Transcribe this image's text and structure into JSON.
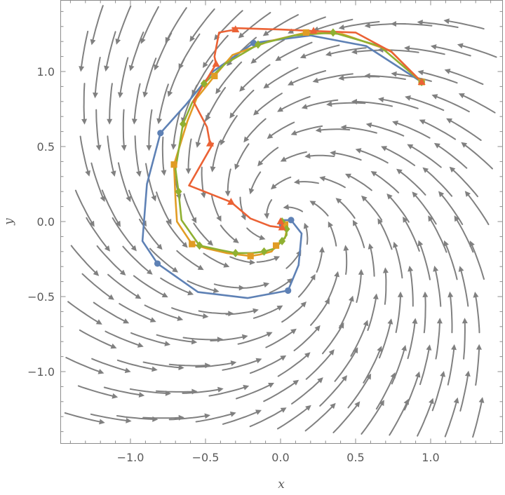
{
  "chart_data": {
    "type": "line",
    "title": "",
    "xlabel": "x",
    "ylabel": "y",
    "xlim": [
      -1.47,
      1.47
    ],
    "ylim": [
      -1.47,
      1.47
    ],
    "x_ticks": [
      {
        "value": -1.0,
        "label": "−1.0"
      },
      {
        "value": -0.5,
        "label": "−0.5"
      },
      {
        "value": 0.0,
        "label": "0.0"
      },
      {
        "value": 0.5,
        "label": "0.5"
      },
      {
        "value": 1.0,
        "label": "1.0"
      }
    ],
    "y_ticks": [
      {
        "value": 1.0,
        "label": "1.0"
      },
      {
        "value": 0.5,
        "label": "0.5"
      },
      {
        "value": 0.0,
        "label": "0.0"
      },
      {
        "value": -0.5,
        "label": "−0.5"
      },
      {
        "value": -1.0,
        "label": "−1.0"
      }
    ],
    "stream_field": {
      "type": "vector-field",
      "color": "#808080",
      "dx": "-0.6*x - y",
      "dy": "x - 0.6*y",
      "range": [
        -1.33,
        1.33
      ]
    },
    "series": [
      {
        "color": "#5e81b5",
        "marker": "circle",
        "points": [
          [
            0.94,
            0.93
          ],
          [
            0.57,
            1.17
          ],
          [
            0.2,
            1.24
          ],
          [
            -0.18,
            1.19
          ],
          [
            -0.45,
            1.0
          ],
          [
            -0.63,
            0.78
          ],
          [
            -0.8,
            0.59
          ],
          [
            -0.89,
            0.25
          ],
          [
            -0.92,
            -0.13
          ],
          [
            -0.82,
            -0.28
          ],
          [
            -0.55,
            -0.47
          ],
          [
            -0.22,
            -0.51
          ],
          [
            0.05,
            -0.46
          ],
          [
            0.12,
            -0.29
          ],
          [
            0.14,
            -0.08
          ],
          [
            0.07,
            0.01
          ],
          [
            0.02,
            0.01
          ],
          [
            0.01,
            -0.01
          ],
          [
            0.01,
            -0.02
          ]
        ],
        "marked": [
          0,
          3,
          6,
          9,
          12,
          15,
          18
        ]
      },
      {
        "color": "#e19c24",
        "marker": "square",
        "points": [
          [
            0.94,
            0.93
          ],
          [
            0.73,
            1.14
          ],
          [
            0.41,
            1.25
          ],
          [
            0.17,
            1.26
          ],
          [
            -0.08,
            1.2
          ],
          [
            -0.32,
            1.11
          ],
          [
            -0.44,
            0.97
          ],
          [
            -0.56,
            0.82
          ],
          [
            -0.62,
            0.67
          ],
          [
            -0.71,
            0.38
          ],
          [
            -0.7,
            0.15
          ],
          [
            -0.69,
            0.0
          ],
          [
            -0.59,
            -0.15
          ],
          [
            -0.49,
            -0.18
          ],
          [
            -0.36,
            -0.21
          ],
          [
            -0.2,
            -0.23
          ],
          [
            -0.14,
            -0.22
          ],
          [
            -0.06,
            -0.2
          ],
          [
            -0.03,
            -0.16
          ],
          [
            0.03,
            -0.11
          ],
          [
            0.04,
            -0.06
          ],
          [
            0.03,
            -0.02
          ],
          [
            0.01,
            -0.01
          ],
          [
            0.0,
            0.0
          ]
        ],
        "marked": [
          0,
          3,
          6,
          9,
          12,
          15,
          18,
          21
        ]
      },
      {
        "color": "#8fb032",
        "marker": "diamond",
        "points": [
          [
            0.94,
            0.93
          ],
          [
            0.66,
            1.17
          ],
          [
            0.35,
            1.26
          ],
          [
            0.09,
            1.24
          ],
          [
            -0.15,
            1.18
          ],
          [
            -0.37,
            1.05
          ],
          [
            -0.51,
            0.92
          ],
          [
            -0.59,
            0.79
          ],
          [
            -0.65,
            0.65
          ],
          [
            -0.7,
            0.35
          ],
          [
            -0.68,
            0.2
          ],
          [
            -0.66,
            0.01
          ],
          [
            -0.54,
            -0.16
          ],
          [
            -0.4,
            -0.19
          ],
          [
            -0.3,
            -0.21
          ],
          [
            -0.19,
            -0.21
          ],
          [
            -0.11,
            -0.2
          ],
          [
            -0.04,
            -0.18
          ],
          [
            0.01,
            -0.13
          ],
          [
            0.04,
            -0.09
          ],
          [
            0.04,
            -0.05
          ],
          [
            0.03,
            -0.01
          ],
          [
            0.01,
            0.0
          ],
          [
            0.0,
            0.0
          ]
        ],
        "marked": [
          0,
          2,
          4,
          6,
          8,
          10,
          12,
          14,
          16,
          18,
          20,
          22
        ]
      },
      {
        "color": "#eb6235",
        "marker": "triangle",
        "points": [
          [
            0.94,
            0.93
          ],
          [
            0.74,
            1.13
          ],
          [
            0.5,
            1.26
          ],
          [
            0.22,
            1.27
          ],
          [
            0.0,
            1.28
          ],
          [
            -0.32,
            1.29
          ],
          [
            -0.3,
            1.28
          ],
          [
            -0.41,
            1.26
          ],
          [
            -0.44,
            1.1
          ],
          [
            -0.43,
            1.05
          ],
          [
            -0.58,
            0.8
          ],
          [
            -0.49,
            0.63
          ],
          [
            -0.47,
            0.52
          ],
          [
            -0.45,
            0.52
          ],
          [
            -0.61,
            0.24
          ],
          [
            -0.33,
            0.13
          ],
          [
            -0.2,
            0.02
          ],
          [
            -0.07,
            -0.03
          ],
          [
            0.01,
            -0.04
          ],
          [
            0.03,
            -0.03
          ],
          [
            0.01,
            -0.01
          ],
          [
            0.0,
            0.0
          ]
        ],
        "marked": [
          0,
          3,
          6,
          9,
          12,
          15,
          18,
          21
        ]
      }
    ]
  }
}
